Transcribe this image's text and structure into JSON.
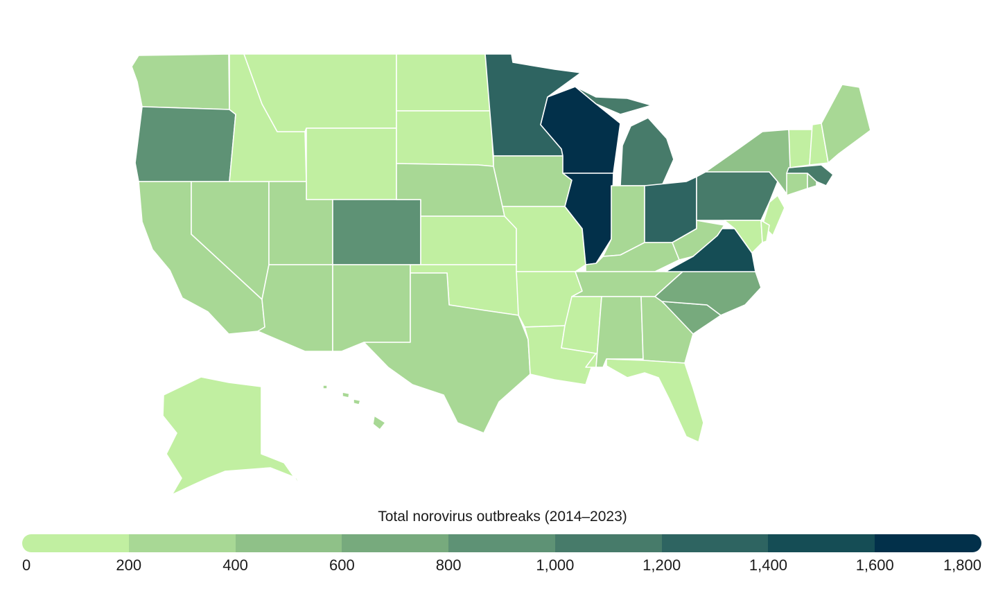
{
  "legend": {
    "title": "Total norovirus outbreaks (2014–2023)",
    "ticks": [
      "0",
      "200",
      "400",
      "600",
      "800",
      "1,000",
      "1,200",
      "1,400",
      "1,600",
      "1,800"
    ],
    "colors": [
      "#c1efa1",
      "#a8d895",
      "#8fc188",
      "#77aa7d",
      "#5e9275",
      "#477b6a",
      "#2e6461",
      "#154d55",
      "#02304a"
    ]
  },
  "map": {
    "bins": {
      "WA": 1,
      "OR": 4,
      "CA": 1,
      "NV": 1,
      "ID": 0,
      "MT": 0,
      "WY": 0,
      "UT": 1,
      "AZ": 1,
      "CO": 4,
      "NM": 1,
      "ND": 0,
      "SD": 0,
      "NE": 1,
      "KS": 0,
      "OK": 0,
      "TX": 1,
      "MN": 6,
      "IA": 1,
      "MO": 0,
      "AR": 0,
      "LA": 0,
      "WI": 8,
      "IL": 8,
      "MI": 5,
      "IN": 1,
      "OH": 6,
      "KY": 1,
      "TN": 1,
      "MS": 0,
      "AL": 1,
      "GA": 1,
      "FL": 0,
      "SC": 3,
      "NC": 3,
      "VA": 7,
      "WV": 1,
      "PA": 5,
      "NY": 2,
      "VT": 0,
      "NH": 0,
      "ME": 1,
      "MA": 5,
      "RI": 2,
      "CT": 1,
      "NJ": 0,
      "DE": 0,
      "MD": 0,
      "AK": 0,
      "HI": 1
    }
  }
}
